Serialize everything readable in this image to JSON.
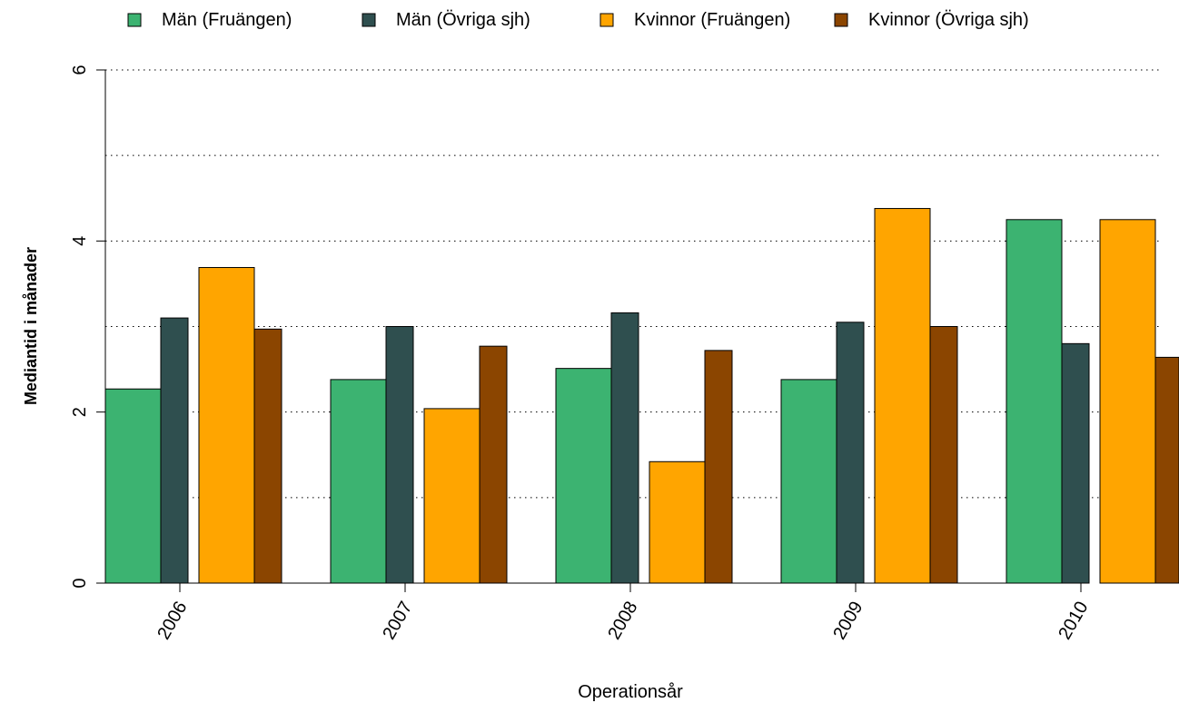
{
  "chart_data": {
    "type": "bar",
    "title": "",
    "xlabel": "Operationsår",
    "ylabel": "Mediantid i månader",
    "categories": [
      "2006",
      "2007",
      "2008",
      "2009",
      "2010"
    ],
    "series": [
      {
        "name": "Män (Fruängen)",
        "color": "#3cb371",
        "values": [
          2.27,
          2.38,
          2.51,
          2.38,
          4.25
        ]
      },
      {
        "name": "Män (Övriga sjh)",
        "color": "#2f4f4f",
        "values": [
          3.1,
          3.0,
          3.16,
          3.05,
          2.8
        ]
      },
      {
        "name": "Kvinnor (Fruängen)",
        "color": "#ffa500",
        "values": [
          3.69,
          2.04,
          1.42,
          4.38,
          4.25
        ]
      },
      {
        "name": "Kvinnor (Övriga sjh)",
        "color": "#8b4500",
        "values": [
          2.97,
          2.77,
          2.72,
          3.0,
          2.64
        ]
      }
    ],
    "y_ticks": [
      "0",
      "2",
      "4",
      "6"
    ],
    "ylim": [
      0,
      6
    ],
    "grid": "horizontal dotted",
    "legend_position": "top"
  }
}
